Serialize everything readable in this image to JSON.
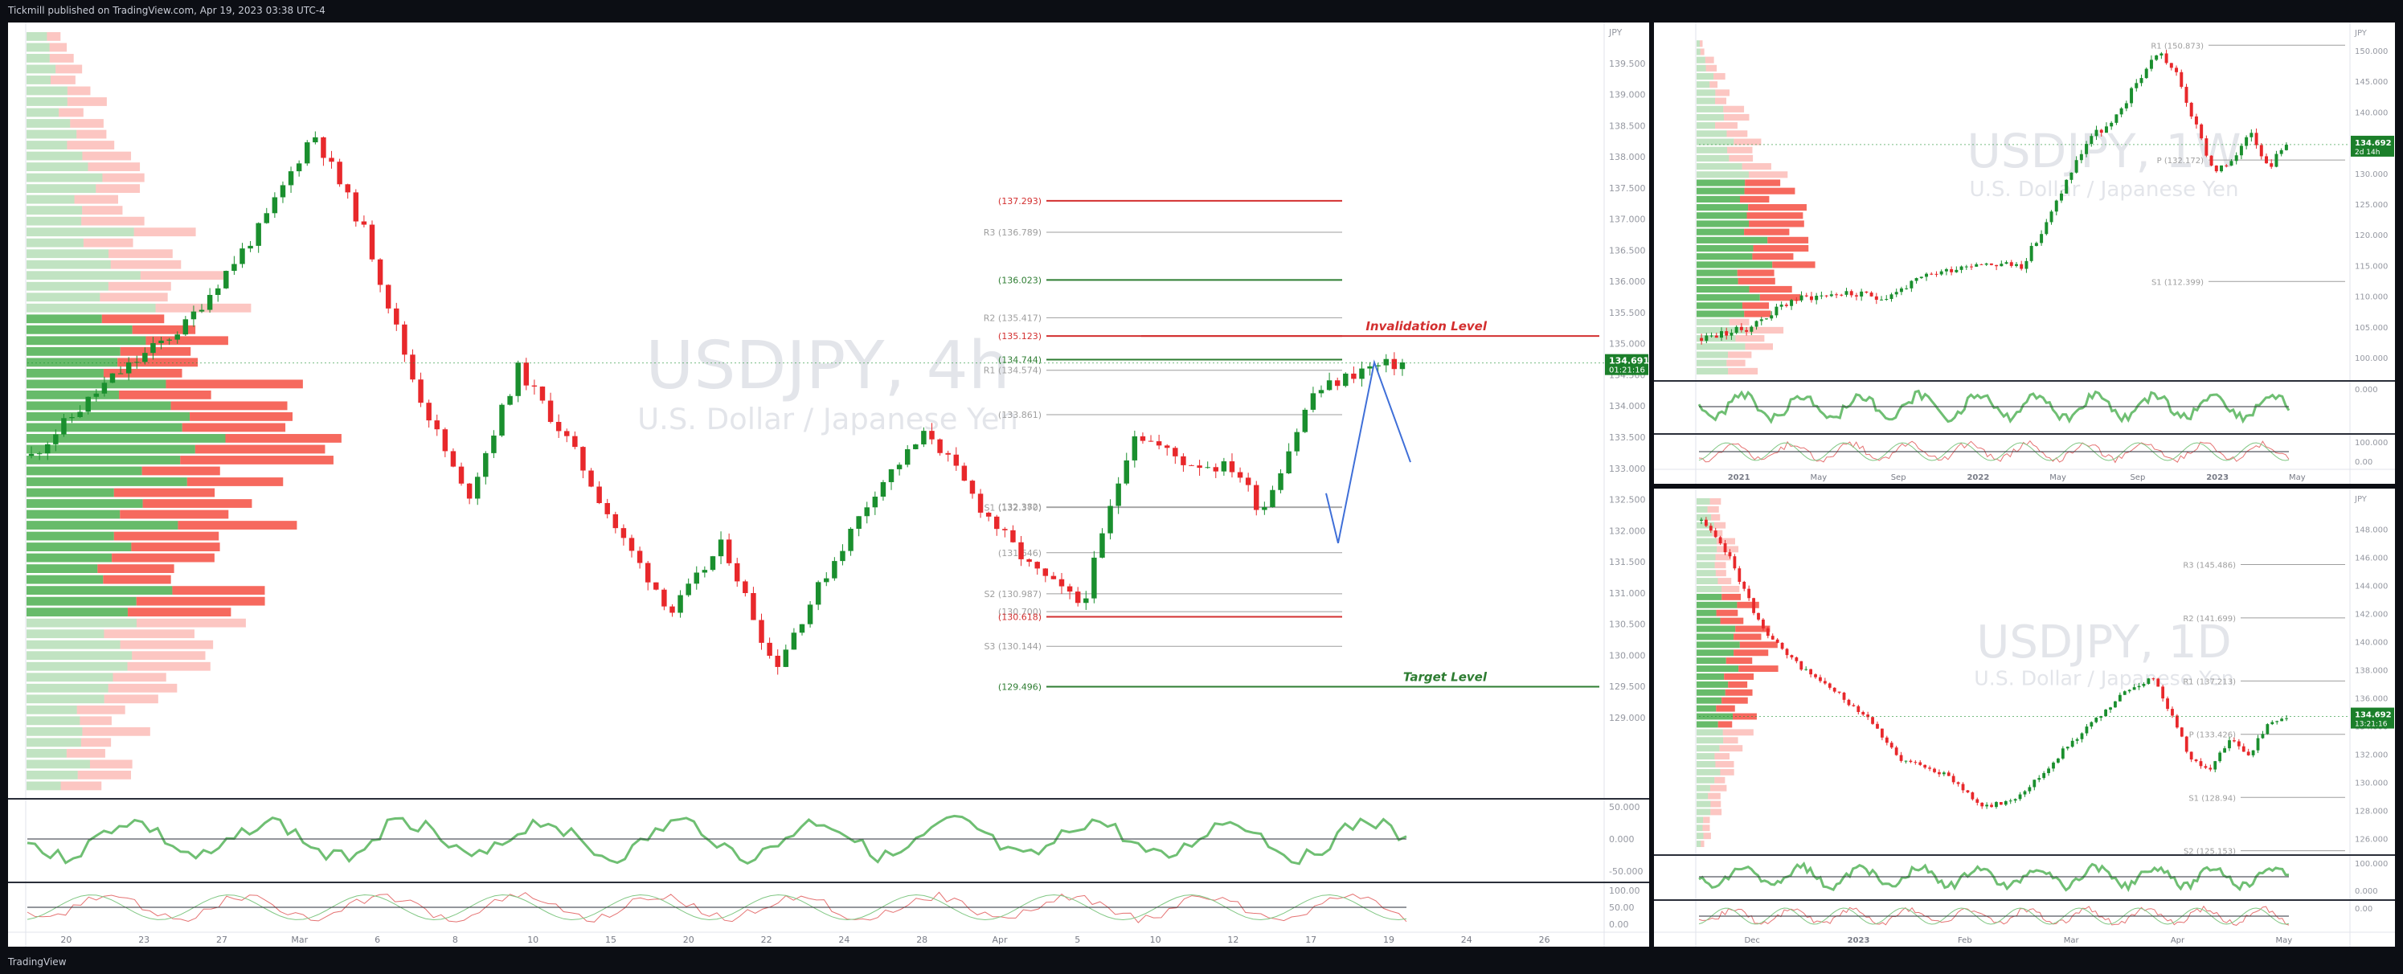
{
  "header": {
    "publisher": "Tickmill published on TradingView.com, Apr 19, 2023 03:38 UTC-4"
  },
  "footer": {
    "brand": "TradingView"
  },
  "colors": {
    "up": "#1a8f2e",
    "down": "#e8282b",
    "level_red": "#d32f2f",
    "level_green": "#2e7d32",
    "pivot": "#9e9e9e",
    "osc_green": "#6fbf73",
    "projection": "#3f6fd8",
    "watermark": "#e3e5ea"
  },
  "main_chart": {
    "watermark_symbol": "USDJPY, 4h",
    "watermark_name": "U.S. Dollar / Japanese Yen",
    "currency": "JPY",
    "price_badge": "134.691",
    "countdown": "01:21:16",
    "chart_data": {
      "type": "candlestick",
      "timeframe": "4h",
      "ylim": [
        127.8,
        140.0
      ],
      "y_ticks": [
        "139.500",
        "139.000",
        "138.500",
        "138.000",
        "137.500",
        "137.000",
        "136.500",
        "136.000",
        "135.500",
        "135.000",
        "134.500",
        "134.000",
        "133.500",
        "133.000",
        "132.500",
        "132.000",
        "131.500",
        "131.000",
        "130.500",
        "130.000",
        "129.500",
        "129.000"
      ],
      "x_ticks": [
        "20",
        "23",
        "27",
        "Mar",
        "6",
        "8",
        "10",
        "15",
        "20",
        "22",
        "24",
        "28",
        "Apr",
        "5",
        "10",
        "12",
        "17",
        "19",
        "24",
        "26"
      ],
      "levels": [
        {
          "label": "(137.293)",
          "price": 137.293,
          "kind": "red"
        },
        {
          "label": "R3 (136.789)",
          "price": 136.789,
          "kind": "pivot"
        },
        {
          "label": "(136.023)",
          "price": 136.023,
          "kind": "green"
        },
        {
          "label": "R2 (135.417)",
          "price": 135.417,
          "kind": "pivot"
        },
        {
          "label": "(135.123)",
          "price": 135.123,
          "kind": "red"
        },
        {
          "label": "(134.744)",
          "price": 134.744,
          "kind": "green"
        },
        {
          "label": "R1 (134.574)",
          "price": 134.574,
          "kind": "pivot"
        },
        {
          "label": "(133.861)",
          "price": 133.861,
          "kind": "pivot"
        },
        {
          "label": "(132.382)",
          "price": 132.382,
          "kind": "pivot"
        },
        {
          "label": "S1 (132.370)",
          "price": 132.37,
          "kind": "pivot"
        },
        {
          "label": "(131.646)",
          "price": 131.646,
          "kind": "pivot"
        },
        {
          "label": "S2 (130.987)",
          "price": 130.987,
          "kind": "pivot"
        },
        {
          "label": "(130.700)",
          "price": 130.7,
          "kind": "pivot"
        },
        {
          "label": "(130.618)",
          "price": 130.618,
          "kind": "red"
        },
        {
          "label": "S3 (130.144)",
          "price": 130.144,
          "kind": "pivot"
        },
        {
          "label": "(129.496)",
          "price": 129.496,
          "kind": "green"
        }
      ],
      "annotations": [
        {
          "text": "Invalidation Level",
          "price": 135.123
        },
        {
          "text": "Target Level",
          "price": 129.496
        }
      ],
      "path": [
        [
          0,
          133.2
        ],
        [
          6,
          134.4
        ],
        [
          12,
          135.3
        ],
        [
          18,
          136.9
        ],
        [
          22,
          138.4
        ],
        [
          26,
          136.8
        ],
        [
          30,
          134.3
        ],
        [
          34,
          132.5
        ],
        [
          38,
          134.6
        ],
        [
          42,
          133.4
        ],
        [
          46,
          131.9
        ],
        [
          50,
          130.7
        ],
        [
          54,
          131.8
        ],
        [
          58,
          129.8
        ],
        [
          62,
          131.3
        ],
        [
          66,
          132.7
        ],
        [
          70,
          133.6
        ],
        [
          74,
          132.4
        ],
        [
          78,
          131.4
        ],
        [
          82,
          130.8
        ],
        [
          86,
          133.6
        ],
        [
          90,
          133.1
        ],
        [
          94,
          133.0
        ],
        [
          96,
          132.3
        ],
        [
          100,
          134.2
        ],
        [
          104,
          134.6
        ],
        [
          107,
          134.69
        ]
      ],
      "rsi": {
        "ylim": [
          0,
          100
        ],
        "ticks": [
          "50.000",
          "0.000",
          "-50.000"
        ]
      },
      "stochastic": {
        "ylim": [
          0,
          100
        ],
        "ticks": [
          "100.00",
          "50.00",
          "0.00"
        ]
      }
    }
  },
  "weekly_chart": {
    "watermark_symbol": "USDJPY, 1W",
    "watermark_name": "U.S. Dollar / Japanese Yen",
    "currency": "JPY",
    "price_badge": "134.692",
    "countdown": "2d 14h",
    "chart_data": {
      "type": "candlestick",
      "timeframe": "1W",
      "ylim": [
        97,
        153
      ],
      "y_ticks": [
        "150.000",
        "145.000",
        "140.000",
        "135.000",
        "130.000",
        "125.000",
        "120.000",
        "115.000",
        "110.000",
        "105.000",
        "100.000"
      ],
      "x_ticks": [
        "2021",
        "May",
        "Sep",
        "2022",
        "May",
        "Sep",
        "2023",
        "May"
      ],
      "levels": [
        {
          "label": "R1 (150.873)",
          "price": 150.873,
          "kind": "pivot"
        },
        {
          "label": "P (132.172)",
          "price": 132.172,
          "kind": "pivot"
        },
        {
          "label": "S1 (112.399)",
          "price": 112.399,
          "kind": "pivot"
        }
      ],
      "path": [
        [
          0,
          103.2
        ],
        [
          10,
          104.8
        ],
        [
          20,
          109.5
        ],
        [
          30,
          110.5
        ],
        [
          40,
          109.8
        ],
        [
          50,
          113.5
        ],
        [
          60,
          115.5
        ],
        [
          70,
          115.0
        ],
        [
          75,
          121.0
        ],
        [
          80,
          129.0
        ],
        [
          85,
          136.0
        ],
        [
          90,
          138.0
        ],
        [
          95,
          144.5
        ],
        [
          100,
          150.0
        ],
        [
          104,
          146.0
        ],
        [
          108,
          138.0
        ],
        [
          112,
          130.5
        ],
        [
          116,
          131.5
        ],
        [
          120,
          137.5
        ],
        [
          124,
          131.0
        ],
        [
          128,
          134.7
        ]
      ],
      "osc_ticks": [
        "0.000",
        "100.000",
        "0.00"
      ]
    }
  },
  "daily_chart": {
    "watermark_symbol": "USDJPY, 1D",
    "watermark_name": "U.S. Dollar / Japanese Yen",
    "currency": "JPY",
    "price_badge": "134.692",
    "countdown": "13:21:16",
    "chart_data": {
      "type": "candlestick",
      "timeframe": "1D",
      "ylim": [
        125.3,
        150.2
      ],
      "y_ticks": [
        "148.000",
        "146.000",
        "144.000",
        "142.000",
        "140.000",
        "138.000",
        "136.000",
        "134.000",
        "132.000",
        "130.000",
        "128.000",
        "126.000"
      ],
      "x_ticks": [
        "Dec",
        "2023",
        "Feb",
        "Mar",
        "Apr",
        "May"
      ],
      "levels": [
        {
          "label": "R3 (145.486)",
          "price": 145.486,
          "kind": "pivot"
        },
        {
          "label": "R2 (141.699)",
          "price": 141.699,
          "kind": "pivot"
        },
        {
          "label": "R1 (137.213)",
          "price": 137.213,
          "kind": "pivot"
        },
        {
          "label": "P (133.426)",
          "price": 133.426,
          "kind": "pivot"
        },
        {
          "label": "S1 (128.94)",
          "price": 128.94,
          "kind": "pivot"
        },
        {
          "label": "S2 (125.153)",
          "price": 125.153,
          "kind": "pivot"
        }
      ],
      "path": [
        [
          0,
          148.6
        ],
        [
          6,
          146.0
        ],
        [
          12,
          141.5
        ],
        [
          18,
          139.0
        ],
        [
          24,
          137.5
        ],
        [
          30,
          136.0
        ],
        [
          36,
          134.5
        ],
        [
          42,
          131.5
        ],
        [
          48,
          131.2
        ],
        [
          54,
          130.0
        ],
        [
          60,
          128.2
        ],
        [
          66,
          128.8
        ],
        [
          72,
          130.5
        ],
        [
          78,
          132.8
        ],
        [
          84,
          134.5
        ],
        [
          90,
          136.5
        ],
        [
          96,
          137.5
        ],
        [
          100,
          134.5
        ],
        [
          104,
          131.5
        ],
        [
          108,
          131.0
        ],
        [
          112,
          133.0
        ],
        [
          116,
          132.0
        ],
        [
          120,
          134.0
        ],
        [
          124,
          134.7
        ]
      ],
      "osc_ticks": [
        "100.000",
        "0.000",
        "0.00"
      ]
    }
  }
}
